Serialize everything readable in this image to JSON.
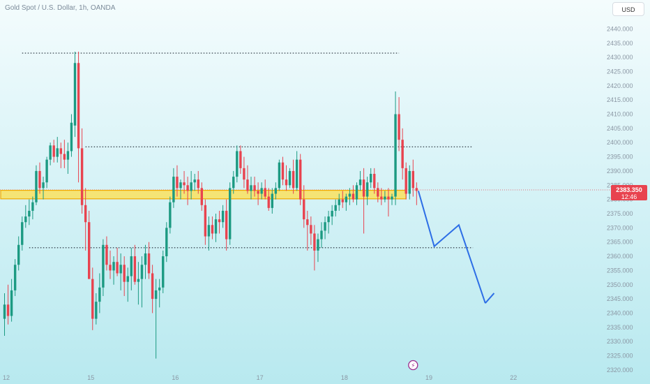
{
  "header": {
    "title": "Gold Spot / U.S. Dollar, 1h, OANDA",
    "currency_button": "USD"
  },
  "colors": {
    "up": "#1c9a82",
    "down": "#e8434f",
    "projection": "#2d6ee6",
    "zone_fill": "#ffdf4a",
    "zone_border": "#f2a900",
    "price_tag": "#e8434f"
  },
  "chart_data": {
    "type": "candlestick",
    "symbol": "Gold Spot / U.S. Dollar",
    "timeframe": "1h",
    "source": "OANDA",
    "ylim": [
      2318,
      2446
    ],
    "y_ticks": [
      "2440.000",
      "2435.000",
      "2430.000",
      "2425.000",
      "2420.000",
      "2415.000",
      "2410.000",
      "2405.000",
      "2400.000",
      "2395.000",
      "2390.000",
      "2385.000",
      "2380.000",
      "2375.000",
      "2370.000",
      "2365.000",
      "2360.000",
      "2355.000",
      "2350.000",
      "2345.000",
      "2340.000",
      "2335.000",
      "2330.000",
      "2325.000",
      "2320.000"
    ],
    "x_ticks": [
      {
        "label": "12",
        "x": 0.5
      },
      {
        "label": "15",
        "x": 24.5
      },
      {
        "label": "16",
        "x": 48.5
      },
      {
        "label": "17",
        "x": 72.5
      },
      {
        "label": "18",
        "x": 96.5
      },
      {
        "label": "19",
        "x": 120.5
      },
      {
        "label": "22",
        "x": 144.5
      }
    ],
    "candles": [
      [
        2338,
        2347,
        2332,
        2343
      ],
      [
        2343,
        2350,
        2336,
        2339
      ],
      [
        2339,
        2352,
        2337,
        2348
      ],
      [
        2348,
        2359,
        2346,
        2357
      ],
      [
        2357,
        2367,
        2355,
        2364
      ],
      [
        2364,
        2374,
        2362,
        2372
      ],
      [
        2372,
        2378,
        2370,
        2374
      ],
      [
        2374,
        2380,
        2371,
        2376
      ],
      [
        2376,
        2381,
        2373,
        2379
      ],
      [
        2379,
        2392,
        2378,
        2390
      ],
      [
        2390,
        2393,
        2382,
        2384
      ],
      [
        2384,
        2388,
        2380,
        2386
      ],
      [
        2386,
        2395,
        2384,
        2394
      ],
      [
        2394,
        2400,
        2392,
        2399
      ],
      [
        2399,
        2401,
        2393,
        2395
      ],
      [
        2395,
        2402,
        2393,
        2398
      ],
      [
        2398,
        2400,
        2391,
        2396
      ],
      [
        2396,
        2401,
        2391,
        2394
      ],
      [
        2394,
        2400,
        2389,
        2397
      ],
      [
        2397,
        2410,
        2395,
        2407
      ],
      [
        2406,
        2432,
        2402,
        2428
      ],
      [
        2428,
        2432,
        2386,
        2398
      ],
      [
        2398,
        2405,
        2375,
        2378
      ],
      [
        2378,
        2384,
        2362,
        2372
      ],
      [
        2372,
        2376,
        2352,
        2352
      ],
      [
        2352,
        2356,
        2334,
        2338
      ],
      [
        2338,
        2347,
        2336,
        2344
      ],
      [
        2344,
        2354,
        2340,
        2349
      ],
      [
        2349,
        2366,
        2346,
        2364
      ],
      [
        2364,
        2367,
        2355,
        2357
      ],
      [
        2357,
        2362,
        2352,
        2355
      ],
      [
        2355,
        2360,
        2350,
        2358
      ],
      [
        2358,
        2363,
        2353,
        2354
      ],
      [
        2354,
        2361,
        2348,
        2357
      ],
      [
        2357,
        2360,
        2346,
        2351
      ],
      [
        2351,
        2356,
        2344,
        2353
      ],
      [
        2353,
        2363,
        2348,
        2360
      ],
      [
        2360,
        2364,
        2350,
        2351
      ],
      [
        2351,
        2358,
        2343,
        2352
      ],
      [
        2352,
        2360,
        2342,
        2357
      ],
      [
        2357,
        2364,
        2352,
        2361
      ],
      [
        2361,
        2365,
        2352,
        2354
      ],
      [
        2354,
        2357,
        2340,
        2345
      ],
      [
        2345,
        2352,
        2324,
        2348
      ],
      [
        2348,
        2352,
        2342,
        2349
      ],
      [
        2349,
        2362,
        2347,
        2360
      ],
      [
        2360,
        2372,
        2358,
        2370
      ],
      [
        2370,
        2381,
        2368,
        2379
      ],
      [
        2379,
        2391,
        2377,
        2388
      ],
      [
        2388,
        2392,
        2381,
        2384
      ],
      [
        2384,
        2387,
        2380,
        2386
      ],
      [
        2386,
        2390,
        2382,
        2385
      ],
      [
        2385,
        2388,
        2378,
        2383
      ],
      [
        2383,
        2390,
        2380,
        2386
      ],
      [
        2386,
        2389,
        2383,
        2387
      ],
      [
        2387,
        2390,
        2382,
        2384
      ],
      [
        2384,
        2386,
        2376,
        2378
      ],
      [
        2378,
        2380,
        2364,
        2367
      ],
      [
        2367,
        2374,
        2362,
        2371
      ],
      [
        2371,
        2374,
        2366,
        2368
      ],
      [
        2368,
        2375,
        2365,
        2373
      ],
      [
        2373,
        2376,
        2368,
        2372
      ],
      [
        2372,
        2378,
        2370,
        2376
      ],
      [
        2376,
        2380,
        2362,
        2366
      ],
      [
        2366,
        2386,
        2364,
        2384
      ],
      [
        2384,
        2390,
        2382,
        2388
      ],
      [
        2388,
        2399,
        2386,
        2397
      ],
      [
        2397,
        2399,
        2389,
        2391
      ],
      [
        2391,
        2395,
        2384,
        2387
      ],
      [
        2387,
        2392,
        2382,
        2383
      ],
      [
        2383,
        2388,
        2380,
        2385
      ],
      [
        2385,
        2388,
        2381,
        2383
      ],
      [
        2383,
        2386,
        2378,
        2382
      ],
      [
        2382,
        2386,
        2380,
        2384
      ],
      [
        2384,
        2387,
        2380,
        2381
      ],
      [
        2381,
        2384,
        2376,
        2377
      ],
      [
        2377,
        2384,
        2375,
        2382
      ],
      [
        2382,
        2386,
        2380,
        2384
      ],
      [
        2384,
        2394,
        2383,
        2393
      ],
      [
        2393,
        2395,
        2385,
        2387
      ],
      [
        2387,
        2392,
        2383,
        2385
      ],
      [
        2385,
        2391,
        2384,
        2390
      ],
      [
        2390,
        2394,
        2382,
        2384
      ],
      [
        2384,
        2397,
        2383,
        2394
      ],
      [
        2394,
        2396,
        2378,
        2380
      ],
      [
        2380,
        2385,
        2370,
        2373
      ],
      [
        2373,
        2376,
        2362,
        2371
      ],
      [
        2371,
        2374,
        2364,
        2368
      ],
      [
        2368,
        2371,
        2355,
        2362
      ],
      [
        2362,
        2368,
        2358,
        2366
      ],
      [
        2366,
        2372,
        2363,
        2369
      ],
      [
        2369,
        2374,
        2366,
        2372
      ],
      [
        2372,
        2376,
        2368,
        2374
      ],
      [
        2374,
        2378,
        2371,
        2376
      ],
      [
        2376,
        2380,
        2374,
        2378
      ],
      [
        2378,
        2382,
        2376,
        2380
      ],
      [
        2380,
        2383,
        2377,
        2379
      ],
      [
        2379,
        2382,
        2376,
        2381
      ],
      [
        2381,
        2384,
        2378,
        2382
      ],
      [
        2382,
        2385,
        2379,
        2380
      ],
      [
        2380,
        2386,
        2378,
        2385
      ],
      [
        2385,
        2390,
        2383,
        2387
      ],
      [
        2387,
        2391,
        2368,
        2381
      ],
      [
        2381,
        2388,
        2378,
        2386
      ],
      [
        2386,
        2391,
        2384,
        2389
      ],
      [
        2389,
        2391,
        2382,
        2384
      ],
      [
        2384,
        2386,
        2379,
        2381
      ],
      [
        2381,
        2384,
        2378,
        2380
      ],
      [
        2380,
        2383,
        2379,
        2381
      ],
      [
        2381,
        2384,
        2374,
        2380
      ],
      [
        2380,
        2382,
        2378,
        2381
      ],
      [
        2381,
        2418,
        2378,
        2410
      ],
      [
        2410,
        2416,
        2397,
        2401
      ],
      [
        2401,
        2405,
        2387,
        2391
      ],
      [
        2391,
        2393,
        2380,
        2382
      ],
      [
        2382,
        2392,
        2380,
        2390
      ],
      [
        2390,
        2394,
        2381,
        2384
      ],
      [
        2384,
        2386,
        2378,
        2383
      ]
    ],
    "levels": [
      {
        "price": 2431.5,
        "x_from": 5,
        "x_to": 112
      },
      {
        "price": 2398.5,
        "x_from": 23,
        "x_to": 133
      },
      {
        "price": 2363.0,
        "x_from": 7,
        "x_to": 133
      }
    ],
    "zone": {
      "price_low": 2380.2,
      "price_high": 2383.2,
      "x_from": 0,
      "x_to": 114
    },
    "projection": {
      "points": [
        [
          117.5,
          2383
        ],
        [
          122,
          2363.5
        ],
        [
          129,
          2371
        ],
        [
          136.5,
          2343.5
        ]
      ],
      "arrowhead_to": [
        139,
        2347
      ]
    },
    "current_price": {
      "price": "2383.350",
      "countdown": "12:46",
      "value": 2383.35
    },
    "events": [
      {
        "symbol": "⚡",
        "x": 116
      }
    ],
    "grid": false
  }
}
